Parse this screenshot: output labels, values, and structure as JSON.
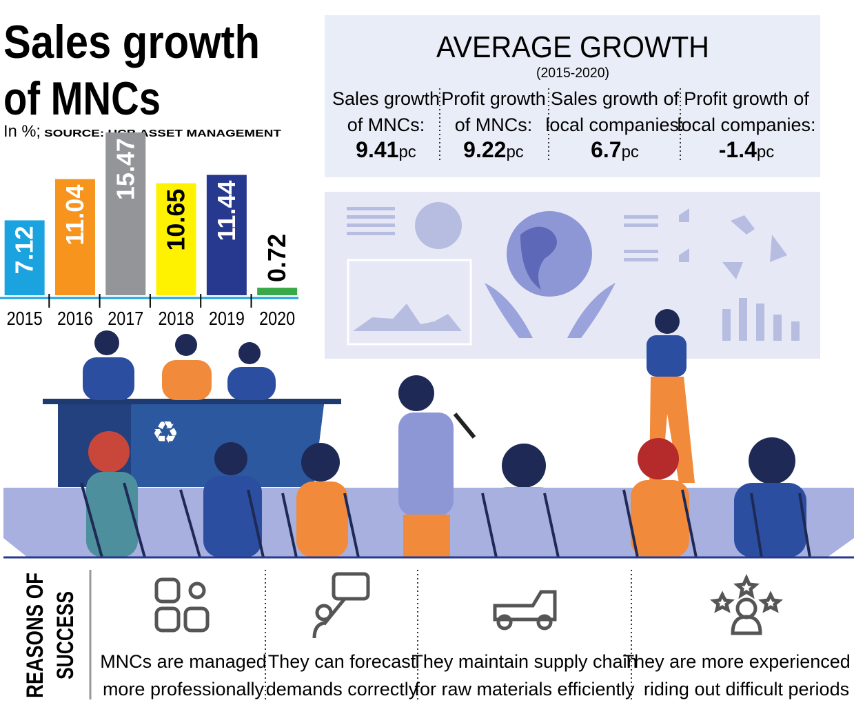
{
  "chart_data": {
    "type": "bar",
    "title": [
      "Sales growth",
      "of MNCs"
    ],
    "subtitle": "In %;",
    "source": "SOURCE: UCB ASSET MANAGEMENT",
    "categories": [
      "2015",
      "2016",
      "2017",
      "2018",
      "2019",
      "2020"
    ],
    "values": [
      7.12,
      11.04,
      15.47,
      10.65,
      11.44,
      0.72
    ],
    "colors": [
      "#1aa3de",
      "#f7941d",
      "#939598",
      "#fff200",
      "#27398f",
      "#3aaa49"
    ],
    "label_colors": [
      "#ffffff",
      "#ffffff",
      "#ffffff",
      "#000000",
      "#ffffff",
      "#000000"
    ],
    "ylim": [
      0,
      16
    ]
  },
  "average_growth": {
    "title": "AVERAGE GROWTH",
    "period": "(2015-2020)",
    "items": [
      {
        "lines": [
          "Sales growth",
          "of MNCs:"
        ],
        "value": "9.41",
        "unit": "pc"
      },
      {
        "lines": [
          "Profit growth",
          "of MNCs:"
        ],
        "value": "9.22",
        "unit": "pc"
      },
      {
        "lines": [
          "Sales growth of",
          "local companies:"
        ],
        "value": "6.7",
        "unit": "pc"
      },
      {
        "lines": [
          "Profit growth of",
          "local companies:"
        ],
        "value": "-1.4",
        "unit": "pc"
      }
    ]
  },
  "reasons": {
    "title": [
      "REASONS OF",
      "SUCCESS"
    ],
    "items": [
      [
        "MNCs are managed",
        "more professionally"
      ],
      [
        "They can forecast",
        "demands correctly"
      ],
      [
        "They maintain supply chain",
        "for raw materials efficiently"
      ],
      [
        "They are more experienced in",
        "riding out difficult periods"
      ]
    ]
  }
}
